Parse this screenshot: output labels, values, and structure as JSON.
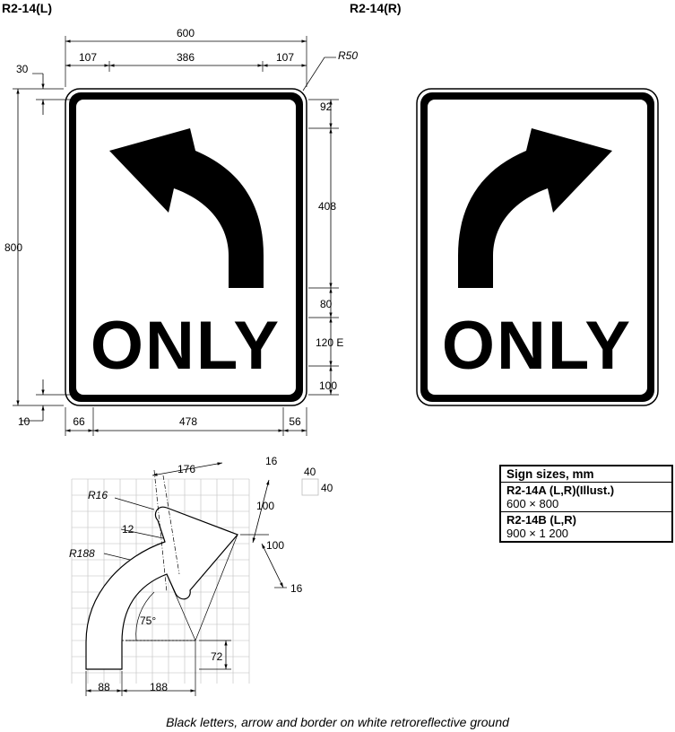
{
  "signs": {
    "left": {
      "code": "R2-14(L)",
      "legend": "ONLY",
      "arrow_direction": "left"
    },
    "right": {
      "code": "R2-14(R)",
      "legend": "ONLY",
      "arrow_direction": "right"
    }
  },
  "dimensions": {
    "width_total": "600",
    "top_segments": [
      "107",
      "386",
      "107"
    ],
    "corner_radius": "R50",
    "border_offset_top": "30",
    "height_total": "800",
    "border_offset_bottom": "10",
    "bottom_segments": [
      "66",
      "478",
      "56"
    ],
    "right_stack": [
      "92",
      "408",
      "80",
      "120 E",
      "100"
    ]
  },
  "arrow_detail": {
    "grid_label_h": "40",
    "grid_label_v": "40",
    "labels": {
      "head_width": "176",
      "tip_radius": "R16",
      "shaft_offset": "12",
      "curve_radius": "R188",
      "angle": "75°",
      "head_upper": "100",
      "head_lower": "100",
      "top_gap": "16",
      "bottom_gap": "16",
      "stem_height": "72",
      "stem_width": "88",
      "inner_offset": "188"
    }
  },
  "sizes_table": {
    "header": "Sign sizes, mm",
    "rows": [
      {
        "name": "R2-14A (L,R)(Illust.)",
        "size": "600 × 800"
      },
      {
        "name": "R2-14B (L,R)",
        "size": "900 × 1 200"
      }
    ]
  },
  "caption": "Black letters, arrow and border on white retroreflective ground"
}
